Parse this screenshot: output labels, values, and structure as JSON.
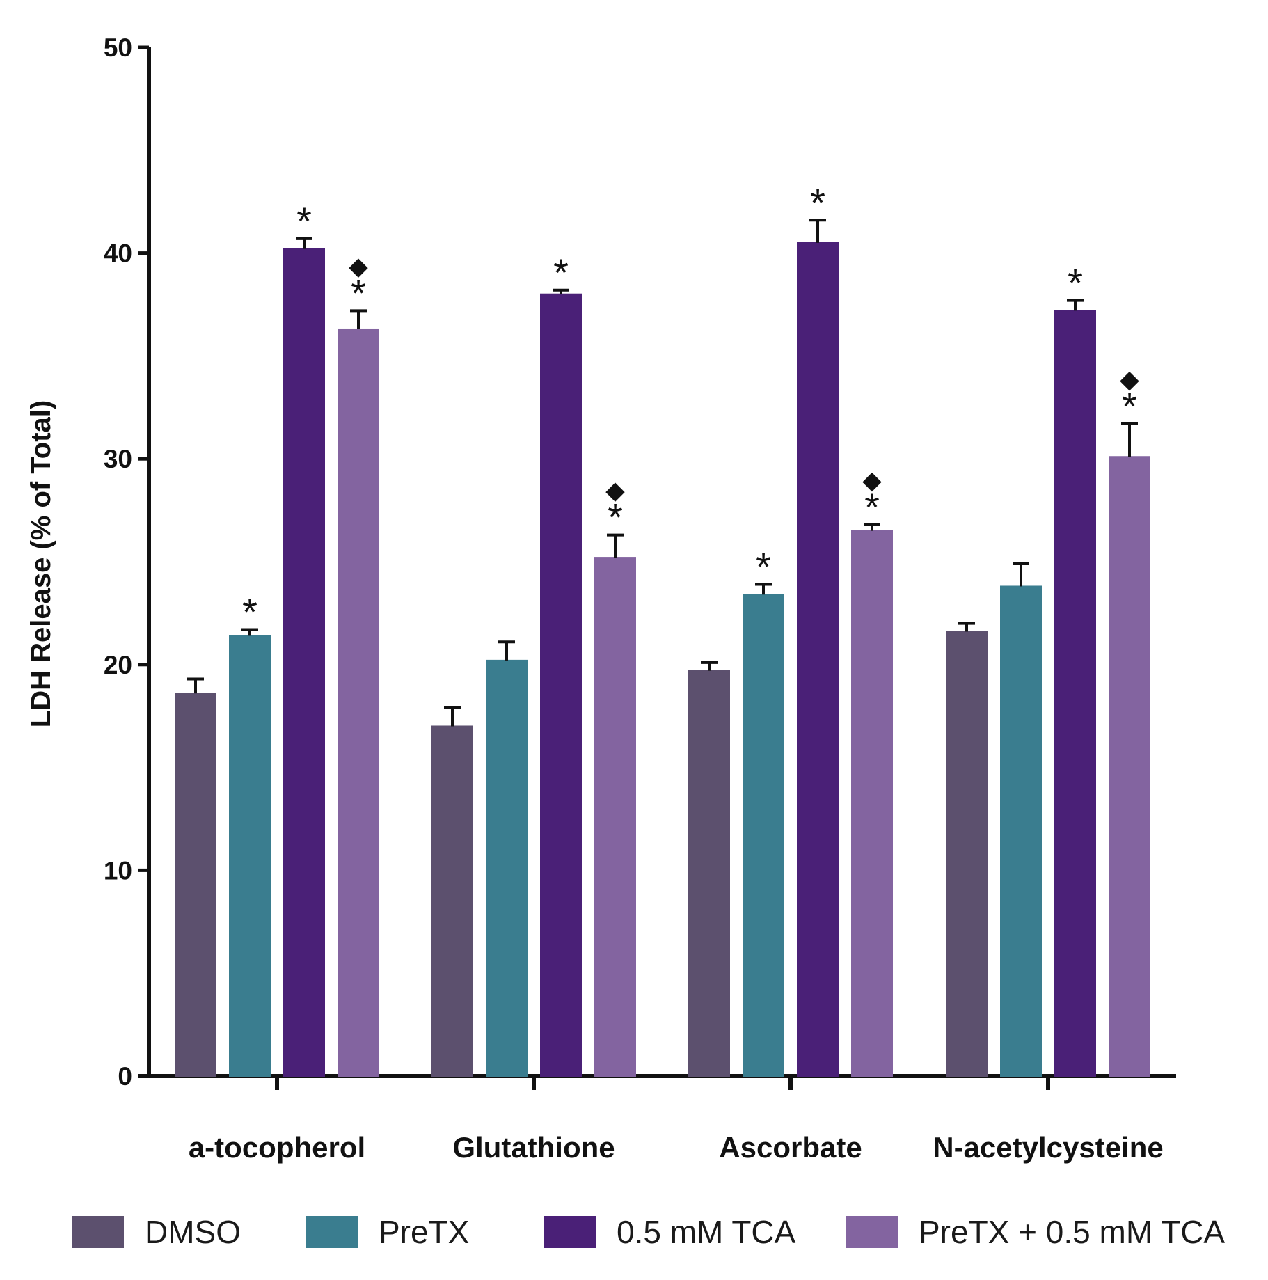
{
  "chart_data": {
    "type": "bar",
    "title": "",
    "xlabel": "",
    "ylabel": "LDH Release (% of Total)",
    "ylim": [
      0,
      50
    ],
    "yticks": [
      0,
      10,
      20,
      30,
      40,
      50
    ],
    "categories": [
      "a-tocopherol",
      "Glutathione",
      "Ascorbate",
      "N-acetylcysteine"
    ],
    "series": [
      {
        "name": "DMSO",
        "color": "#5c506e",
        "values": [
          18.6,
          17.0,
          19.7,
          21.6
        ],
        "errors": [
          0.7,
          0.9,
          0.4,
          0.4
        ],
        "marks": [
          [
            "",
            ""
          ],
          [
            "",
            ""
          ],
          [
            "",
            ""
          ],
          [
            "",
            ""
          ]
        ]
      },
      {
        "name": "PreTX",
        "color": "#3a7d8f",
        "values": [
          21.4,
          20.2,
          23.4,
          23.8
        ],
        "errors": [
          0.3,
          0.9,
          0.5,
          1.1
        ],
        "marks": [
          [
            "*",
            ""
          ],
          [
            "",
            ""
          ],
          [
            "*",
            ""
          ],
          [
            "",
            ""
          ]
        ]
      },
      {
        "name": "0.5 mM TCA",
        "color": "#4a2077",
        "values": [
          40.2,
          38.0,
          40.5,
          37.2
        ],
        "errors": [
          0.5,
          0.2,
          1.1,
          0.5
        ],
        "marks": [
          [
            "*",
            ""
          ],
          [
            "*",
            ""
          ],
          [
            "*",
            ""
          ],
          [
            "*",
            ""
          ]
        ]
      },
      {
        "name": "PreTX + 0.5 mM TCA",
        "color": "#8364a0",
        "values": [
          36.3,
          25.2,
          26.5,
          30.1
        ],
        "errors": [
          0.9,
          1.1,
          0.3,
          1.6
        ],
        "marks": [
          [
            "*",
            "◆"
          ],
          [
            "*",
            "◆"
          ],
          [
            "*",
            "◆"
          ],
          [
            "*",
            "◆"
          ]
        ]
      }
    ],
    "legend_position": "bottom"
  }
}
